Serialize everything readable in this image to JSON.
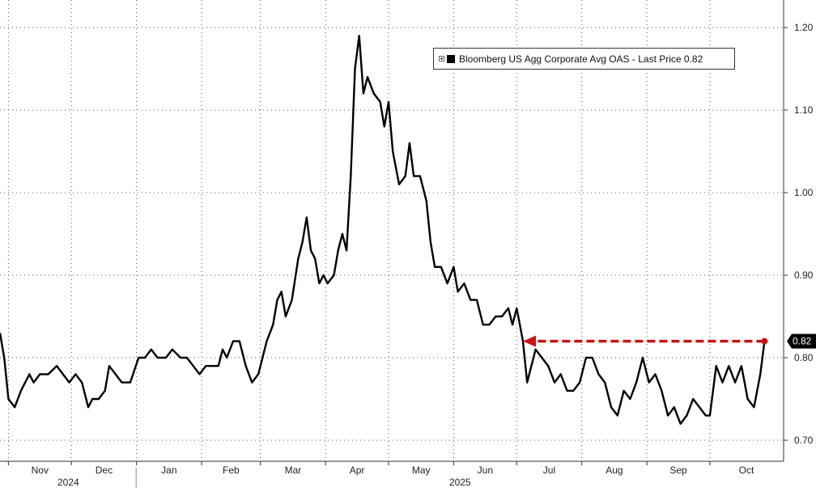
{
  "chart_data": {
    "type": "line",
    "title": "",
    "xlabel": "",
    "ylabel": "",
    "ylim": [
      0.68,
      1.22
    ],
    "y_ticks": [
      "0.70",
      "0.80",
      "0.90",
      "1.00",
      "1.10",
      "1.20"
    ],
    "months": [
      "Nov",
      "Dec",
      "Jan",
      "Feb",
      "Mar",
      "Apr",
      "May",
      "Jun",
      "Jul",
      "Aug",
      "Sep",
      "Oct"
    ],
    "years": [
      "2024",
      "2025"
    ],
    "grid": true,
    "legend_position": "top-right",
    "series": [
      {
        "name": "Bloomberg US Agg Corporate Avg OAS - Last Price 0.82",
        "color": "#000000",
        "points": [
          [
            "2024-10-28",
            0.83
          ],
          [
            "2024-10-30",
            0.8
          ],
          [
            "2024-11-01",
            0.75
          ],
          [
            "2024-11-04",
            0.74
          ],
          [
            "2024-11-07",
            0.76
          ],
          [
            "2024-11-11",
            0.78
          ],
          [
            "2024-11-13",
            0.77
          ],
          [
            "2024-11-16",
            0.78
          ],
          [
            "2024-11-20",
            0.78
          ],
          [
            "2024-11-24",
            0.79
          ],
          [
            "2024-11-27",
            0.78
          ],
          [
            "2024-11-30",
            0.77
          ],
          [
            "2024-12-03",
            0.78
          ],
          [
            "2024-12-06",
            0.77
          ],
          [
            "2024-12-09",
            0.74
          ],
          [
            "2024-12-11",
            0.75
          ],
          [
            "2024-12-14",
            0.75
          ],
          [
            "2024-12-17",
            0.76
          ],
          [
            "2024-12-19",
            0.79
          ],
          [
            "2024-12-22",
            0.78
          ],
          [
            "2024-12-25",
            0.77
          ],
          [
            "2024-12-29",
            0.77
          ],
          [
            "2025-01-02",
            0.8
          ],
          [
            "2025-01-05",
            0.8
          ],
          [
            "2025-01-08",
            0.81
          ],
          [
            "2025-01-11",
            0.8
          ],
          [
            "2025-01-15",
            0.8
          ],
          [
            "2025-01-18",
            0.81
          ],
          [
            "2025-01-22",
            0.8
          ],
          [
            "2025-01-25",
            0.8
          ],
          [
            "2025-01-28",
            0.79
          ],
          [
            "2025-01-31",
            0.78
          ],
          [
            "2025-02-03",
            0.79
          ],
          [
            "2025-02-06",
            0.79
          ],
          [
            "2025-02-09",
            0.79
          ],
          [
            "2025-02-11",
            0.81
          ],
          [
            "2025-02-13",
            0.8
          ],
          [
            "2025-02-16",
            0.82
          ],
          [
            "2025-02-19",
            0.82
          ],
          [
            "2025-02-22",
            0.79
          ],
          [
            "2025-02-25",
            0.77
          ],
          [
            "2025-02-28",
            0.78
          ],
          [
            "2025-03-02",
            0.8
          ],
          [
            "2025-03-04",
            0.82
          ],
          [
            "2025-03-07",
            0.84
          ],
          [
            "2025-03-09",
            0.87
          ],
          [
            "2025-03-11",
            0.88
          ],
          [
            "2025-03-13",
            0.85
          ],
          [
            "2025-03-16",
            0.87
          ],
          [
            "2025-03-19",
            0.92
          ],
          [
            "2025-03-21",
            0.94
          ],
          [
            "2025-03-23",
            0.97
          ],
          [
            "2025-03-25",
            0.93
          ],
          [
            "2025-03-27",
            0.92
          ],
          [
            "2025-03-29",
            0.89
          ],
          [
            "2025-03-31",
            0.9
          ],
          [
            "2025-04-02",
            0.89
          ],
          [
            "2025-04-05",
            0.9
          ],
          [
            "2025-04-07",
            0.93
          ],
          [
            "2025-04-09",
            0.95
          ],
          [
            "2025-04-11",
            0.93
          ],
          [
            "2025-04-13",
            1.02
          ],
          [
            "2025-04-15",
            1.15
          ],
          [
            "2025-04-17",
            1.19
          ],
          [
            "2025-04-19",
            1.12
          ],
          [
            "2025-04-21",
            1.14
          ],
          [
            "2025-04-24",
            1.12
          ],
          [
            "2025-04-27",
            1.11
          ],
          [
            "2025-04-29",
            1.08
          ],
          [
            "2025-05-01",
            1.11
          ],
          [
            "2025-05-03",
            1.05
          ],
          [
            "2025-05-06",
            1.01
          ],
          [
            "2025-05-09",
            1.02
          ],
          [
            "2025-05-11",
            1.06
          ],
          [
            "2025-05-13",
            1.02
          ],
          [
            "2025-05-16",
            1.02
          ],
          [
            "2025-05-19",
            0.99
          ],
          [
            "2025-05-21",
            0.94
          ],
          [
            "2025-05-23",
            0.91
          ],
          [
            "2025-05-26",
            0.91
          ],
          [
            "2025-05-29",
            0.89
          ],
          [
            "2025-06-01",
            0.91
          ],
          [
            "2025-06-03",
            0.88
          ],
          [
            "2025-06-06",
            0.89
          ],
          [
            "2025-06-09",
            0.87
          ],
          [
            "2025-06-12",
            0.87
          ],
          [
            "2025-06-15",
            0.84
          ],
          [
            "2025-06-18",
            0.84
          ],
          [
            "2025-06-21",
            0.85
          ],
          [
            "2025-06-24",
            0.85
          ],
          [
            "2025-06-27",
            0.86
          ],
          [
            "2025-06-29",
            0.84
          ],
          [
            "2025-07-01",
            0.86
          ],
          [
            "2025-07-04",
            0.82
          ],
          [
            "2025-07-06",
            0.77
          ],
          [
            "2025-07-08",
            0.79
          ],
          [
            "2025-07-10",
            0.81
          ],
          [
            "2025-07-13",
            0.8
          ],
          [
            "2025-07-16",
            0.79
          ],
          [
            "2025-07-19",
            0.77
          ],
          [
            "2025-07-22",
            0.78
          ],
          [
            "2025-07-25",
            0.76
          ],
          [
            "2025-07-28",
            0.76
          ],
          [
            "2025-07-31",
            0.77
          ],
          [
            "2025-08-03",
            0.8
          ],
          [
            "2025-08-06",
            0.8
          ],
          [
            "2025-08-09",
            0.78
          ],
          [
            "2025-08-12",
            0.77
          ],
          [
            "2025-08-15",
            0.74
          ],
          [
            "2025-08-18",
            0.73
          ],
          [
            "2025-08-21",
            0.76
          ],
          [
            "2025-08-24",
            0.75
          ],
          [
            "2025-08-27",
            0.77
          ],
          [
            "2025-08-30",
            0.8
          ],
          [
            "2025-09-02",
            0.77
          ],
          [
            "2025-09-05",
            0.78
          ],
          [
            "2025-09-08",
            0.76
          ],
          [
            "2025-09-11",
            0.73
          ],
          [
            "2025-09-14",
            0.74
          ],
          [
            "2025-09-17",
            0.72
          ],
          [
            "2025-09-20",
            0.73
          ],
          [
            "2025-09-23",
            0.75
          ],
          [
            "2025-09-26",
            0.74
          ],
          [
            "2025-09-29",
            0.73
          ],
          [
            "2025-10-01",
            0.73
          ],
          [
            "2025-10-04",
            0.79
          ],
          [
            "2025-10-07",
            0.77
          ],
          [
            "2025-10-10",
            0.79
          ],
          [
            "2025-10-13",
            0.77
          ],
          [
            "2025-10-16",
            0.79
          ],
          [
            "2025-10-19",
            0.75
          ],
          [
            "2025-10-22",
            0.74
          ],
          [
            "2025-10-25",
            0.78
          ],
          [
            "2025-10-27",
            0.82
          ]
        ]
      }
    ],
    "annotations": {
      "last_price_label": "0.82",
      "reference_arrow": {
        "from": [
          "2025-10-27",
          0.82
        ],
        "to": [
          "2025-07-04",
          0.82
        ],
        "color": "#cc1111",
        "style": "dashed"
      }
    },
    "x_axis": {
      "start": "2024-10-28",
      "end": "2025-10-28",
      "month_starts": [
        "2024-11-01",
        "2024-12-01",
        "2025-01-01",
        "2025-02-01",
        "2025-03-01",
        "2025-04-01",
        "2025-05-01",
        "2025-06-01",
        "2025-07-01",
        "2025-08-01",
        "2025-09-01",
        "2025-10-01"
      ],
      "year_boundary": "2025-01-01"
    }
  },
  "legend": {
    "label": "Bloomberg US Agg Corporate Avg OAS - Last Price 0.82",
    "icon": "square-swatch",
    "toggle_icon": "expand-toggle-icon"
  }
}
